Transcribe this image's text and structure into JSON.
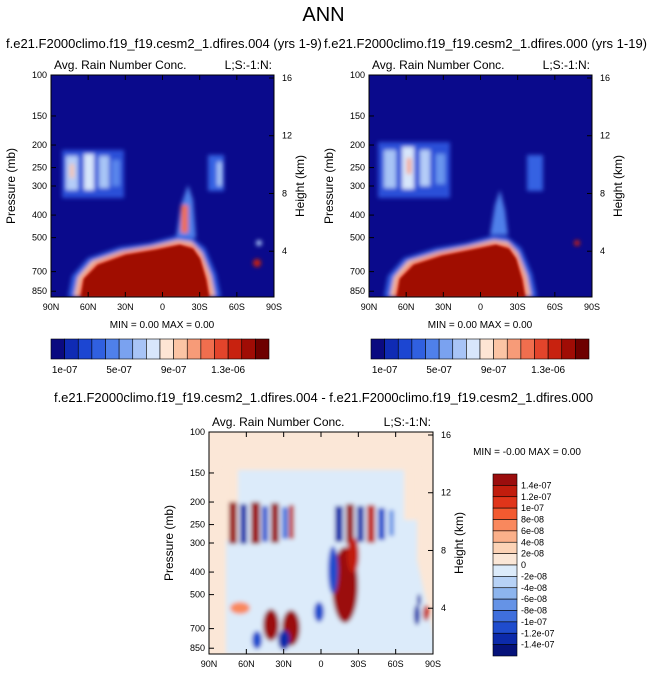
{
  "page": {
    "title": "ANN",
    "panel_a_title": "f.e21.F2000climo.f19_f19.cesm2_1.dfires.004 (yrs 1-9)",
    "panel_b_title": "f.e21.F2000climo.f19_f19.cesm2_1.dfires.000 (yrs 1-19)",
    "diff_title": "f.e21.F2000climo.f19_f19.cesm2_1.dfires.004 - f.e21.F2000climo.f19_f19.cesm2_1.dfires.000"
  },
  "chart_data": [
    {
      "type": "heatmap",
      "title": "Avg. Rain Number Conc.",
      "corner_label": "L;S:-1:N:",
      "ylabel": "Pressure (mb)",
      "ylabel_right": "Height (km)",
      "x_ticks": [
        "90N",
        "60N",
        "30N",
        "0",
        "30S",
        "60S",
        "90S"
      ],
      "y_ticks": [
        "100",
        "150",
        "200",
        "250",
        "300",
        "400",
        "500",
        "700",
        "850"
      ],
      "y_ticks_right": [
        "16",
        "12",
        "8",
        "4"
      ],
      "stats": "MIN =  0.00  MAX =  0.00",
      "colorbar_labels": [
        "1e-07",
        "5e-07",
        "9e-07",
        "1.3e-06"
      ],
      "colorbar_colors": [
        "#0a0a80",
        "#0f2bb4",
        "#1c46d2",
        "#3060e0",
        "#4f80ea",
        "#7aa2f0",
        "#a8c4f6",
        "#d8e6fb",
        "#fde5d4",
        "#fbc4a4",
        "#f79b78",
        "#f06e4e",
        "#e3442b",
        "#c8220f",
        "#a00c05",
        "#6e0000"
      ]
    },
    {
      "type": "heatmap",
      "title": "Avg. Rain Number Conc.",
      "corner_label": "L;S:-1:N:",
      "ylabel": "Pressure (mb)",
      "ylabel_right": "Height (km)",
      "x_ticks": [
        "90N",
        "60N",
        "30N",
        "0",
        "30S",
        "60S",
        "90S"
      ],
      "y_ticks": [
        "100",
        "150",
        "200",
        "250",
        "300",
        "400",
        "500",
        "700",
        "850"
      ],
      "y_ticks_right": [
        "16",
        "12",
        "8",
        "4"
      ],
      "stats": "MIN =  0.00  MAX =  0.00",
      "colorbar_labels": [
        "1e-07",
        "5e-07",
        "9e-07",
        "1.3e-06"
      ],
      "colorbar_colors": [
        "#0a0a80",
        "#0f2bb4",
        "#1c46d2",
        "#3060e0",
        "#4f80ea",
        "#7aa2f0",
        "#a8c4f6",
        "#d8e6fb",
        "#fde5d4",
        "#fbc4a4",
        "#f79b78",
        "#f06e4e",
        "#e3442b",
        "#c8220f",
        "#a00c05",
        "#6e0000"
      ]
    },
    {
      "type": "heatmap",
      "title": "Avg. Rain Number Conc.",
      "corner_label": "L;S:-1:N:",
      "ylabel": "Pressure (mb)",
      "ylabel_right": "Height (km)",
      "x_ticks": [
        "90N",
        "60N",
        "30N",
        "0",
        "30S",
        "60S",
        "90S"
      ],
      "y_ticks": [
        "100",
        "150",
        "200",
        "250",
        "300",
        "400",
        "500",
        "700",
        "850"
      ],
      "y_ticks_right": [
        "16",
        "12",
        "8",
        "4"
      ],
      "stats": "MIN = -0.00  MAX =   0.00",
      "colorbar_labels": [
        "1.4e-07",
        "1.2e-07",
        "1e-07",
        "8e-08",
        "6e-08",
        "4e-08",
        "2e-08",
        "0",
        "-2e-08",
        "-4e-08",
        "-6e-08",
        "-8e-08",
        "-1e-07",
        "-1.2e-07",
        "-1.4e-07"
      ],
      "colorbar_colors": [
        "#9b0d0d",
        "#c11d0d",
        "#e0351a",
        "#f25a30",
        "#f9885d",
        "#fbb08a",
        "#fcd3b6",
        "#fbe7d7",
        "#dcebfa",
        "#b7d2f6",
        "#8db5ee",
        "#6593e6",
        "#3f6fdc",
        "#1f4ccd",
        "#0c2aaa",
        "#06127a"
      ]
    }
  ]
}
